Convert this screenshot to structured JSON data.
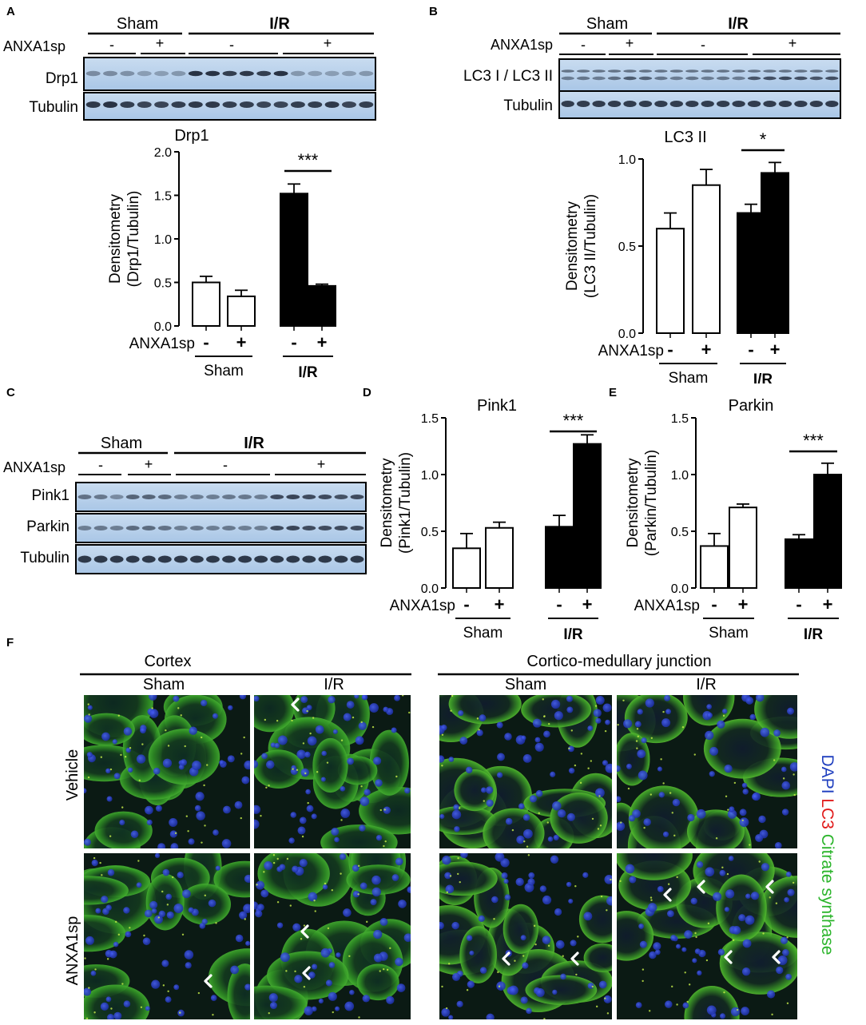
{
  "panel_labels": {
    "a": "A",
    "b": "B",
    "c": "C",
    "d": "D",
    "e": "E",
    "f": "F"
  },
  "blot_a": {
    "groups": [
      "Sham",
      "I/R"
    ],
    "treatment_label": "ANXA1sp",
    "signs": [
      "-",
      "+",
      "-",
      "+"
    ],
    "rows": [
      "Drp1",
      "Tubulin"
    ]
  },
  "blot_b": {
    "groups": [
      "Sham",
      "I/R"
    ],
    "treatment_label": "ANXA1sp",
    "signs": [
      "-",
      "+",
      "-",
      "+"
    ],
    "rows": [
      "LC3 I / LC3 II",
      "Tubulin"
    ]
  },
  "blot_c": {
    "groups": [
      "Sham",
      "I/R"
    ],
    "treatment_label": "ANXA1sp",
    "signs": [
      "-",
      "+",
      "-",
      "+"
    ],
    "rows": [
      "Pink1",
      "Parkin",
      "Tubulin"
    ]
  },
  "chart_data": [
    {
      "panel": "A",
      "type": "bar",
      "title": "Drp1",
      "ylabel": "Densitometry (Drp1/Tubulin)",
      "ylabel_lines": [
        "Densitometry",
        "(Drp1/Tubulin)"
      ],
      "ylim": [
        0,
        2.0
      ],
      "yticks": [
        "0.0",
        "0.5",
        "1.0",
        "1.5",
        "2.0"
      ],
      "categories": [
        "Sham -",
        "Sham +",
        "I/R -",
        "I/R +"
      ],
      "values": [
        0.5,
        0.34,
        1.52,
        0.46
      ],
      "errors": [
        0.07,
        0.07,
        0.11,
        0.02
      ],
      "fills": [
        "white",
        "white",
        "black",
        "black"
      ],
      "signs": [
        "-",
        "+",
        "-",
        "+"
      ],
      "groups": [
        "Sham",
        "I/R"
      ],
      "treatment_label": "ANXA1sp",
      "significance": "***"
    },
    {
      "panel": "B",
      "type": "bar",
      "title": "LC3 II",
      "ylabel": "Densitometry (LC3 II/Tubulin)",
      "ylabel_lines": [
        "Densitometry",
        "(LC3 II/Tubulin)"
      ],
      "ylim": [
        0,
        1.0
      ],
      "yticks": [
        "0.0",
        "0.5",
        "1.0"
      ],
      "categories": [
        "Sham -",
        "Sham +",
        "I/R -",
        "I/R +"
      ],
      "values": [
        0.6,
        0.85,
        0.69,
        0.92
      ],
      "errors": [
        0.09,
        0.09,
        0.05,
        0.06
      ],
      "fills": [
        "white",
        "white",
        "black",
        "black"
      ],
      "signs": [
        "-",
        "+",
        "-",
        "+"
      ],
      "groups": [
        "Sham",
        "I/R"
      ],
      "treatment_label": "ANXA1sp",
      "significance": "*"
    },
    {
      "panel": "D",
      "type": "bar",
      "title": "Pink1",
      "ylabel": "Densitometry (Pink1/Tubulin)",
      "ylabel_lines": [
        "Densitometry",
        "(Pink1/Tubulin)"
      ],
      "ylim": [
        0,
        1.5
      ],
      "yticks": [
        "0.0",
        "0.5",
        "1.0",
        "1.5"
      ],
      "categories": [
        "Sham -",
        "Sham +",
        "I/R -",
        "I/R +"
      ],
      "values": [
        0.35,
        0.53,
        0.54,
        1.27
      ],
      "errors": [
        0.13,
        0.05,
        0.1,
        0.08
      ],
      "fills": [
        "white",
        "white",
        "black",
        "black"
      ],
      "signs": [
        "-",
        "+",
        "-",
        "+"
      ],
      "groups": [
        "Sham",
        "I/R"
      ],
      "treatment_label": "ANXA1sp",
      "significance": "***"
    },
    {
      "panel": "E",
      "type": "bar",
      "title": "Parkin",
      "ylabel": "Densitometry (Parkin/Tubulin)",
      "ylabel_lines": [
        "Densitometry",
        "(Parkin/Tubulin)"
      ],
      "ylim": [
        0,
        1.5
      ],
      "yticks": [
        "0.0",
        "0.5",
        "1.0",
        "1.5"
      ],
      "categories": [
        "Sham -",
        "Sham +",
        "I/R -",
        "I/R +"
      ],
      "values": [
        0.37,
        0.71,
        0.43,
        1.0
      ],
      "errors": [
        0.11,
        0.03,
        0.04,
        0.1
      ],
      "fills": [
        "white",
        "white",
        "black",
        "black"
      ],
      "signs": [
        "-",
        "+",
        "-",
        "+"
      ],
      "groups": [
        "Sham",
        "I/R"
      ],
      "treatment_label": "ANXA1sp",
      "significance": "***"
    }
  ],
  "panel_f": {
    "regions": [
      "Cortex",
      "Cortico-medullary junction"
    ],
    "columns": [
      "Sham",
      "I/R",
      "Sham",
      "I/R"
    ],
    "rows": [
      "Vehicle",
      "ANXA1sp"
    ],
    "legend": [
      {
        "text": "DAPI",
        "color": "#1f3fbf"
      },
      {
        "text": "LC3",
        "color": "#e11b1b"
      },
      {
        "text": "Citrate synthase",
        "color": "#2cb52c"
      }
    ],
    "marker": "arrowhead"
  }
}
